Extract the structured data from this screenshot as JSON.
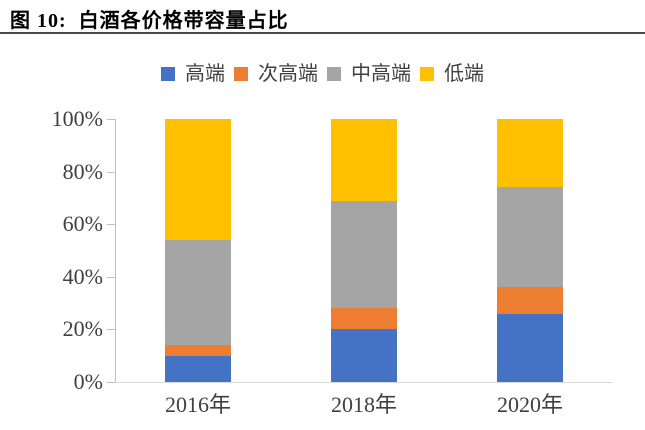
{
  "figure": {
    "title": "图 10:  白酒各价格带容量占比"
  },
  "chart_data": {
    "type": "bar",
    "stacked": true,
    "figure_label": "图 10:",
    "title": "白酒各价格带容量占比",
    "categories": [
      "2016年",
      "2018年",
      "2020年"
    ],
    "series": [
      {
        "name": "高端",
        "color": "#4472C4",
        "values": [
          10,
          20,
          26
        ]
      },
      {
        "name": "次高端",
        "color": "#ED7D31",
        "values": [
          4,
          8,
          10
        ]
      },
      {
        "name": "中高端",
        "color": "#A5A5A5",
        "values": [
          40,
          41,
          38
        ]
      },
      {
        "name": "低端",
        "color": "#FFC000",
        "values": [
          46,
          31,
          26
        ]
      }
    ],
    "unit": "%",
    "ylim": [
      0,
      100
    ],
    "y_ticks": [
      "0%",
      "20%",
      "40%",
      "60%",
      "80%",
      "100%"
    ],
    "legend_position": "top",
    "grid": false
  }
}
